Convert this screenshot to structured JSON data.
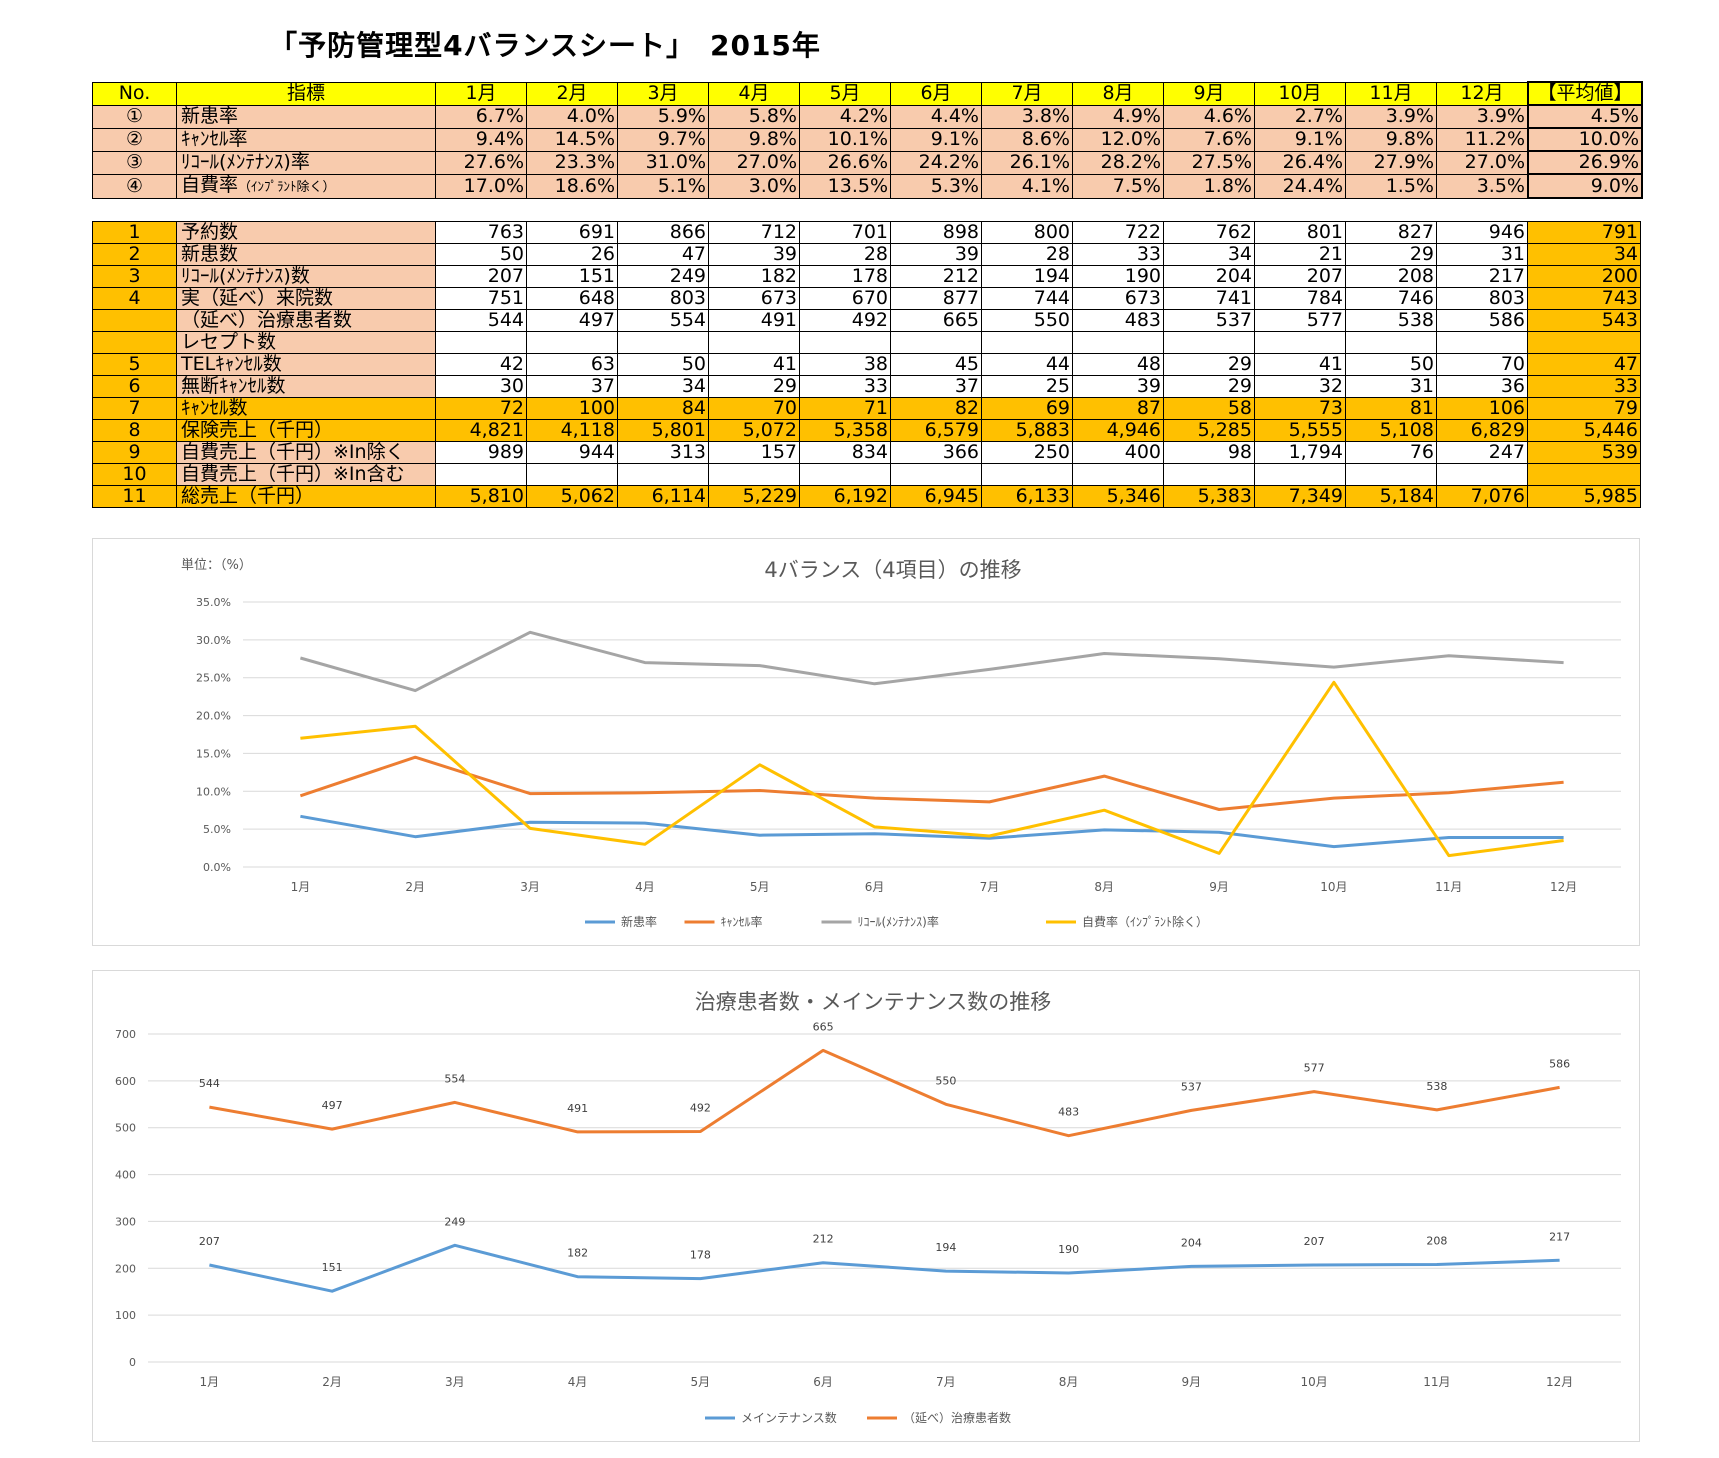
{
  "title": "「予防管理型4バランスシート」　2015年",
  "months": [
    "1月",
    "2月",
    "3月",
    "4月",
    "5月",
    "6月",
    "7月",
    "8月",
    "9月",
    "10月",
    "11月",
    "12月"
  ],
  "table1": {
    "header": {
      "no": "No.",
      "label": "指標",
      "avg": "【平均値】"
    },
    "rows": [
      {
        "no": "①",
        "label": "新患率",
        "label_note": "",
        "values": [
          "6.7%",
          "4.0%",
          "5.9%",
          "5.8%",
          "4.2%",
          "4.4%",
          "3.8%",
          "4.9%",
          "4.6%",
          "2.7%",
          "3.9%",
          "3.9%"
        ],
        "avg": "4.5%"
      },
      {
        "no": "②",
        "label": "ｷｬﾝｾﾙ率",
        "label_note": "",
        "values": [
          "9.4%",
          "14.5%",
          "9.7%",
          "9.8%",
          "10.1%",
          "9.1%",
          "8.6%",
          "12.0%",
          "7.6%",
          "9.1%",
          "9.8%",
          "11.2%"
        ],
        "avg": "10.0%"
      },
      {
        "no": "③",
        "label": "ﾘｺｰﾙ(ﾒﾝﾃﾅﾝｽ)率",
        "label_note": "",
        "values": [
          "27.6%",
          "23.3%",
          "31.0%",
          "27.0%",
          "26.6%",
          "24.2%",
          "26.1%",
          "28.2%",
          "27.5%",
          "26.4%",
          "27.9%",
          "27.0%"
        ],
        "avg": "26.9%"
      },
      {
        "no": "④",
        "label": "自費率",
        "label_note": "（ｲﾝﾌﾟﾗﾝﾄ除く）",
        "values": [
          "17.0%",
          "18.6%",
          "5.1%",
          "3.0%",
          "13.5%",
          "5.3%",
          "4.1%",
          "7.5%",
          "1.8%",
          "24.4%",
          "1.5%",
          "3.5%"
        ],
        "avg": "9.0%"
      }
    ]
  },
  "table2": {
    "rows": [
      {
        "no": "1",
        "label": "予約数",
        "values": [
          "763",
          "691",
          "866",
          "712",
          "701",
          "898",
          "800",
          "722",
          "762",
          "801",
          "827",
          "946"
        ],
        "avg": "791",
        "style": "w"
      },
      {
        "no": "2",
        "label": "新患数",
        "values": [
          "50",
          "26",
          "47",
          "39",
          "28",
          "39",
          "28",
          "33",
          "34",
          "21",
          "29",
          "31"
        ],
        "avg": "34",
        "style": "w"
      },
      {
        "no": "3",
        "label": "ﾘｺｰﾙ(ﾒﾝﾃﾅﾝｽ)数",
        "values": [
          "207",
          "151",
          "249",
          "182",
          "178",
          "212",
          "194",
          "190",
          "204",
          "207",
          "208",
          "217"
        ],
        "avg": "200",
        "style": "w"
      },
      {
        "no": "4",
        "label": "実（延べ）来院数",
        "values": [
          "751",
          "648",
          "803",
          "673",
          "670",
          "877",
          "744",
          "673",
          "741",
          "784",
          "746",
          "803"
        ],
        "avg": "743",
        "style": "w"
      },
      {
        "no": "",
        "label": "（延べ）治療患者数",
        "values": [
          "544",
          "497",
          "554",
          "491",
          "492",
          "665",
          "550",
          "483",
          "537",
          "577",
          "538",
          "586"
        ],
        "avg": "543",
        "style": "w"
      },
      {
        "no": "",
        "label": "レセプト数",
        "values": [
          "",
          "",
          "",
          "",
          "",
          "",
          "",
          "",
          "",
          "",
          "",
          ""
        ],
        "avg": "",
        "style": "w"
      },
      {
        "no": "5",
        "label": "TELｷｬﾝｾﾙ数",
        "values": [
          "42",
          "63",
          "50",
          "41",
          "38",
          "45",
          "44",
          "48",
          "29",
          "41",
          "50",
          "70"
        ],
        "avg": "47",
        "style": "w"
      },
      {
        "no": "6",
        "label": "無断ｷｬﾝｾﾙ数",
        "values": [
          "30",
          "37",
          "34",
          "29",
          "33",
          "37",
          "25",
          "39",
          "29",
          "32",
          "31",
          "36"
        ],
        "avg": "33",
        "style": "w"
      },
      {
        "no": "7",
        "label": "ｷｬﾝｾﾙ数",
        "values": [
          "72",
          "100",
          "84",
          "70",
          "71",
          "82",
          "69",
          "87",
          "58",
          "73",
          "81",
          "106"
        ],
        "avg": "79",
        "style": "o"
      },
      {
        "no": "8",
        "label": "保険売上（千円）",
        "values": [
          "4,821",
          "4,118",
          "5,801",
          "5,072",
          "5,358",
          "6,579",
          "5,883",
          "4,946",
          "5,285",
          "5,555",
          "5,108",
          "6,829"
        ],
        "avg": "5,446",
        "style": "o"
      },
      {
        "no": "9",
        "label": "自費売上（千円）※In除く",
        "values": [
          "989",
          "944",
          "313",
          "157",
          "834",
          "366",
          "250",
          "400",
          "98",
          "1,794",
          "76",
          "247"
        ],
        "avg": "539",
        "style": "w"
      },
      {
        "no": "10",
        "label": "自費売上（千円）※In含む",
        "values": [
          "",
          "",
          "",
          "",
          "",
          "",
          "",
          "",
          "",
          "",
          "",
          ""
        ],
        "avg": "",
        "style": "w"
      },
      {
        "no": "11",
        "label": "総売上（千円）",
        "values": [
          "5,810",
          "5,062",
          "6,114",
          "5,229",
          "6,192",
          "6,945",
          "6,133",
          "5,346",
          "5,383",
          "7,349",
          "5,184",
          "7,076"
        ],
        "avg": "5,985",
        "style": "o"
      }
    ]
  },
  "colors": {
    "yellow": "#ffff00",
    "peach": "#f8cbad",
    "orange": "#ffc000",
    "blue": "#5b9bd5",
    "orange_line": "#ed7d31",
    "gray": "#a5a5a5",
    "gold": "#ffc000"
  },
  "chart_data": [
    {
      "type": "line",
      "title": "4バランス（4項目）の推移",
      "unit_label": "単位：（%）",
      "categories": [
        "1月",
        "2月",
        "3月",
        "4月",
        "5月",
        "6月",
        "7月",
        "8月",
        "9月",
        "10月",
        "11月",
        "12月"
      ],
      "yticks": [
        "0.0%",
        "5.0%",
        "10.0%",
        "15.0%",
        "20.0%",
        "25.0%",
        "30.0%",
        "35.0%"
      ],
      "ylim": [
        0,
        35
      ],
      "legend": "bottom",
      "grid": true,
      "series": [
        {
          "name": "新患率",
          "color": "#5b9bd5",
          "values": [
            6.7,
            4.0,
            5.9,
            5.8,
            4.2,
            4.4,
            3.8,
            4.9,
            4.6,
            2.7,
            3.9,
            3.9
          ]
        },
        {
          "name": "ｷｬﾝｾﾙ率",
          "color": "#ed7d31",
          "values": [
            9.4,
            14.5,
            9.7,
            9.8,
            10.1,
            9.1,
            8.6,
            12.0,
            7.6,
            9.1,
            9.8,
            11.2
          ]
        },
        {
          "name": "ﾘｺｰﾙ(ﾒﾝﾃﾅﾝｽ)率",
          "color": "#a5a5a5",
          "values": [
            27.6,
            23.3,
            31.0,
            27.0,
            26.6,
            24.2,
            26.1,
            28.2,
            27.5,
            26.4,
            27.9,
            27.0
          ]
        },
        {
          "name": "自費率（ｲﾝﾌﾟﾗﾝﾄ除く）",
          "color": "#ffc000",
          "values": [
            17.0,
            18.6,
            5.1,
            3.0,
            13.5,
            5.3,
            4.1,
            7.5,
            1.8,
            24.4,
            1.5,
            3.5
          ]
        }
      ]
    },
    {
      "type": "line",
      "title": "治療患者数・メインテナンス数の推移",
      "categories": [
        "1月",
        "2月",
        "3月",
        "4月",
        "5月",
        "6月",
        "7月",
        "8月",
        "9月",
        "10月",
        "11月",
        "12月"
      ],
      "yticks": [
        "0",
        "100",
        "200",
        "300",
        "400",
        "500",
        "600",
        "700"
      ],
      "ylim": [
        0,
        700
      ],
      "legend": "bottom",
      "grid": true,
      "series": [
        {
          "name": "メインテナンス数",
          "color": "#5b9bd5",
          "values": [
            207,
            151,
            249,
            182,
            178,
            212,
            194,
            190,
            204,
            207,
            208,
            217
          ],
          "labels": [
            "207",
            "151",
            "249",
            "182",
            "178",
            "212",
            "194",
            "190",
            "204",
            "207",
            "208",
            "217"
          ]
        },
        {
          "name": "（延べ）治療患者数",
          "color": "#ed7d31",
          "values": [
            544,
            497,
            554,
            491,
            492,
            665,
            550,
            483,
            537,
            577,
            538,
            586
          ],
          "labels": [
            "544",
            "497",
            "554",
            "491",
            "492",
            "665",
            "550",
            "483",
            "537",
            "577",
            "538",
            "586"
          ]
        }
      ]
    }
  ]
}
